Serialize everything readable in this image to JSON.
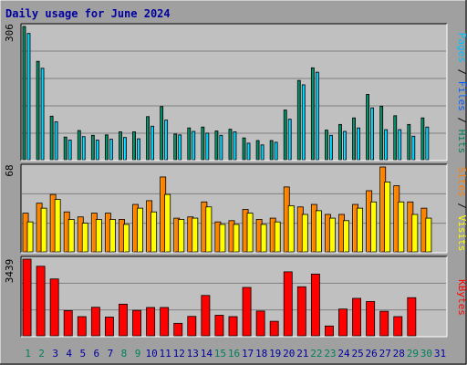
{
  "title": "Daily usage for June 2024",
  "colors": {
    "frame": "#a0a0a0",
    "plot_bg": "#c0c0c0",
    "grid": "#808080",
    "hits": "#00805c",
    "files": "#00c0ff",
    "visits": "#ff8000",
    "sites": "#ffff00",
    "kbytes": "#ff0000",
    "weekend": "#00805c",
    "weekday": "#0000a0"
  },
  "chart_data": [
    {
      "type": "bar",
      "name": "Pages / Files / Hits",
      "ymax_label": "306",
      "ylim": [
        0,
        306
      ],
      "legend": [
        "Pages",
        "/",
        "Files",
        "/",
        "Hits"
      ],
      "categories": [
        "1",
        "2",
        "3",
        "4",
        "5",
        "6",
        "7",
        "8",
        "9",
        "10",
        "11",
        "12",
        "13",
        "14",
        "15",
        "16",
        "17",
        "18",
        "19",
        "20",
        "21",
        "22",
        "23",
        "24",
        "25",
        "26",
        "27",
        "28",
        "29",
        "30",
        "31"
      ],
      "series": [
        {
          "name": "Hits",
          "values": [
            306,
            226,
            100,
            52,
            67,
            56,
            57,
            64,
            64,
            99,
            122,
            59,
            73,
            75,
            66,
            70,
            50,
            44,
            44,
            114,
            182,
            211,
            68,
            81,
            96,
            150,
            123,
            101,
            81,
            96,
            0
          ]
        },
        {
          "name": "Files",
          "values": [
            290,
            210,
            87,
            45,
            53,
            45,
            47,
            51,
            48,
            77,
            91,
            57,
            65,
            61,
            56,
            64,
            38,
            34,
            40,
            93,
            172,
            201,
            56,
            65,
            73,
            119,
            69,
            69,
            54,
            75,
            0
          ]
        },
        {
          "name": "Pages",
          "values": [
            0,
            0,
            0,
            0,
            0,
            0,
            0,
            0,
            0,
            0,
            0,
            0,
            0,
            0,
            0,
            0,
            0,
            0,
            0,
            0,
            0,
            0,
            0,
            0,
            0,
            0,
            0,
            0,
            0,
            0,
            0
          ]
        }
      ]
    },
    {
      "type": "bar",
      "name": "Sites / Visits",
      "ymax_label": "68",
      "ylim": [
        0,
        68
      ],
      "legend": [
        "Sites",
        "/",
        "Visits"
      ],
      "categories": [
        "1",
        "2",
        "3",
        "4",
        "5",
        "6",
        "7",
        "8",
        "9",
        "10",
        "11",
        "12",
        "13",
        "14",
        "15",
        "16",
        "17",
        "18",
        "19",
        "20",
        "21",
        "22",
        "23",
        "24",
        "25",
        "26",
        "27",
        "28",
        "29",
        "30",
        "31"
      ],
      "series": [
        {
          "name": "Visits",
          "values": [
            31,
            39,
            46,
            32,
            28,
            31,
            31,
            26,
            38,
            41,
            60,
            27,
            28,
            40,
            24,
            25,
            34,
            26,
            27,
            52,
            36,
            38,
            30,
            30,
            38,
            49,
            68,
            53,
            40,
            35,
            0
          ]
        },
        {
          "name": "Sites",
          "values": [
            24,
            35,
            42,
            26,
            23,
            26,
            26,
            22,
            35,
            32,
            46,
            26,
            27,
            36,
            22,
            22,
            31,
            22,
            24,
            37,
            30,
            33,
            27,
            25,
            35,
            40,
            56,
            40,
            30,
            27,
            0
          ]
        }
      ]
    },
    {
      "type": "bar",
      "name": "KBytes",
      "ymax_label": "3439",
      "ylim": [
        0,
        3439
      ],
      "legend": [
        "KBytes"
      ],
      "categories": [
        "1",
        "2",
        "3",
        "4",
        "5",
        "6",
        "7",
        "8",
        "9",
        "10",
        "11",
        "12",
        "13",
        "14",
        "15",
        "16",
        "17",
        "18",
        "19",
        "20",
        "21",
        "22",
        "23",
        "24",
        "25",
        "26",
        "27",
        "28",
        "29",
        "30",
        "31"
      ],
      "series": [
        {
          "name": "KBytes",
          "values": [
            3439,
            3120,
            2550,
            1130,
            860,
            1280,
            840,
            1420,
            1140,
            1270,
            1270,
            560,
            870,
            1810,
            920,
            860,
            2170,
            1110,
            650,
            2870,
            2200,
            2770,
            440,
            1200,
            1680,
            1540,
            1100,
            860,
            1710,
            0,
            0
          ]
        }
      ]
    }
  ],
  "weekend_days": [
    "1",
    "2",
    "8",
    "9",
    "15",
    "16",
    "22",
    "23",
    "29",
    "30"
  ]
}
